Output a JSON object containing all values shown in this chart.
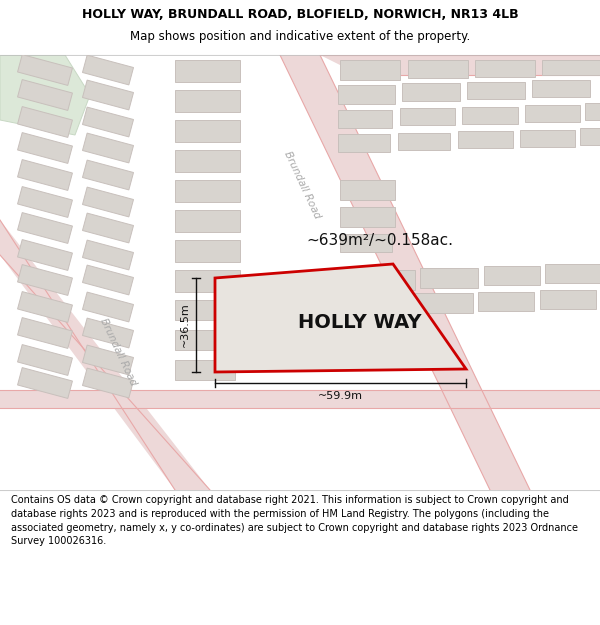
{
  "title_line1": "HOLLY WAY, BRUNDALL ROAD, BLOFIELD, NORWICH, NR13 4LB",
  "title_line2": "Map shows position and indicative extent of the property.",
  "footer_text": "Contains OS data © Crown copyright and database right 2021. This information is subject to Crown copyright and database rights 2023 and is reproduced with the permission of HM Land Registry. The polygons (including the associated geometry, namely x, y co-ordinates) are subject to Crown copyright and database rights 2023 Ordnance Survey 100026316.",
  "area_label": "~639m²/~0.158ac.",
  "plot_label": "HOLLY WAY",
  "dim_width": "~59.9m",
  "dim_height": "~36.5m",
  "road_label_upper": "Brundall Road",
  "road_label_lower": "Brundall Road",
  "bg_color": "#f0ece8",
  "road_fill": "#edd8d8",
  "road_line": "#e8a8a8",
  "bld_fill": "#d8d4cf",
  "bld_edge": "#c8c0bc",
  "green_fill": "#dce8d8",
  "green_edge": "#c8d8c4",
  "plot_edge": "#cc0000",
  "plot_fill": "#e8e4df",
  "dim_color": "#111111",
  "label_color": "#111111",
  "road_text_color": "#aaaaaa",
  "title_fs": 9.0,
  "subtitle_fs": 8.5,
  "footer_fs": 7.0,
  "area_fs": 11,
  "plot_fs": 14,
  "dim_fs": 8,
  "road_fs": 7.5
}
